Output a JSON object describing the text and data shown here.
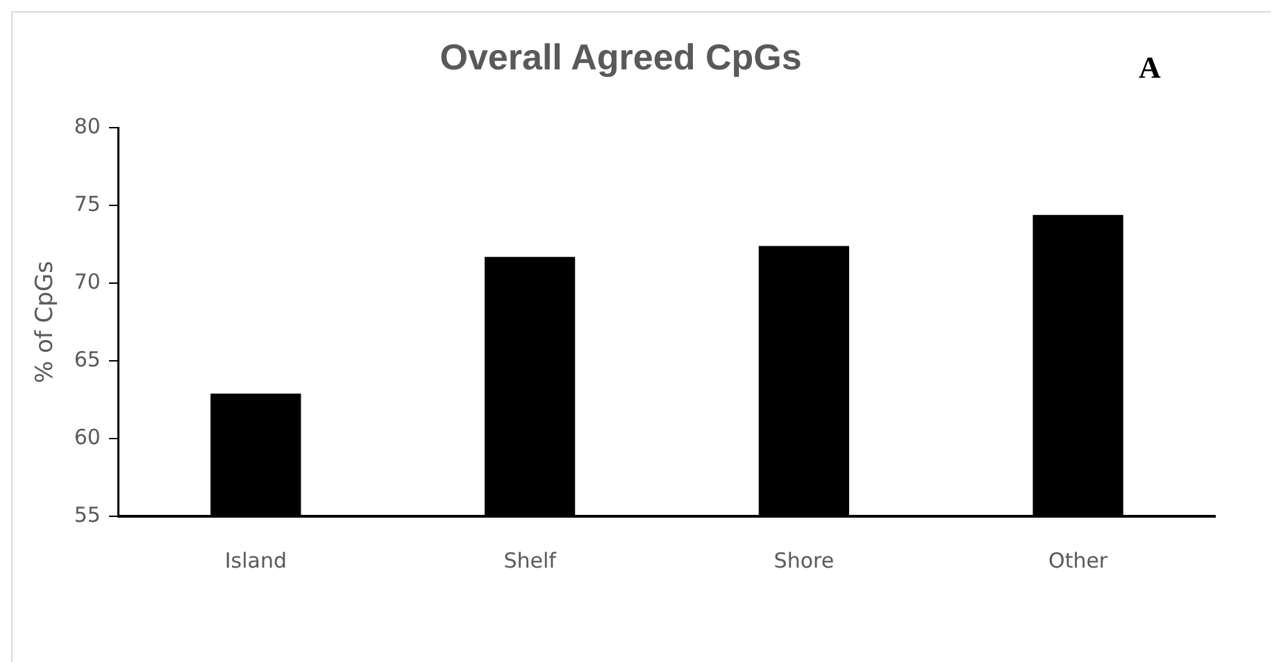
{
  "chart_data": {
    "type": "bar",
    "title": "Overall Agreed CpGs",
    "ylabel": "% of CpGs",
    "categories": [
      "Island",
      "Shelf",
      "Shore",
      "Other"
    ],
    "values": [
      62.9,
      71.7,
      72.4,
      74.4
    ],
    "color": "#000000",
    "ylim": [
      55,
      80
    ],
    "yticks": [
      55,
      60,
      65,
      70,
      75,
      80
    ],
    "grid": false,
    "legend": false,
    "annotations": [
      "A"
    ]
  }
}
